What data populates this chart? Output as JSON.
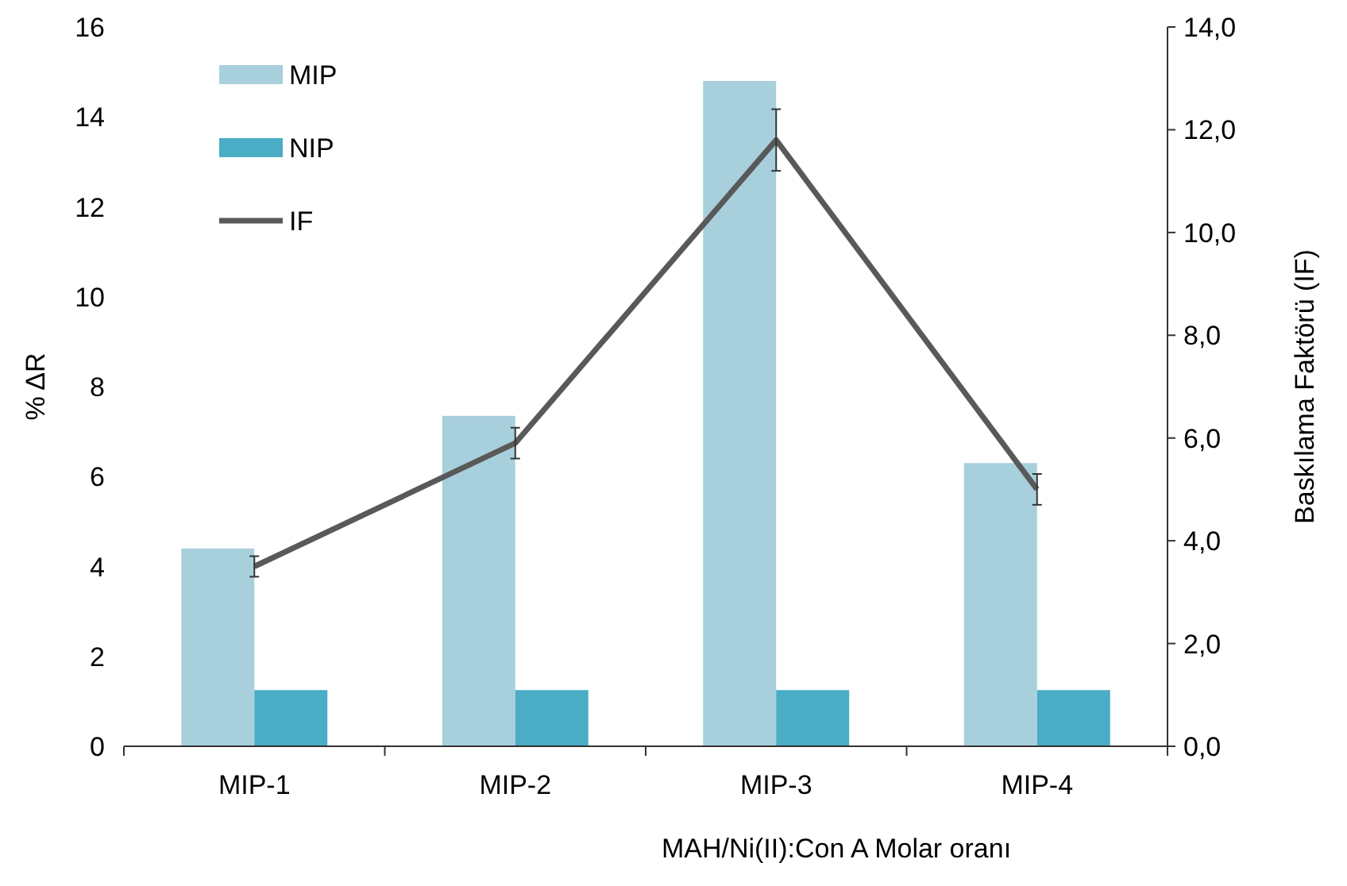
{
  "chart_data": {
    "type": "bar",
    "xlabel": "MAH/Ni(II):Con A Molar oranı",
    "ylabel": "% ΔR",
    "y2label": "Baskılama Faktörü (IF)",
    "categories": [
      "MIP-1",
      "MIP-2",
      "MIP-3",
      "MIP-4"
    ],
    "series": [
      {
        "name": "MIP",
        "color": "#a8d0dc",
        "values": [
          4.4,
          7.35,
          14.8,
          6.3
        ]
      },
      {
        "name": "NIP",
        "color": "#4bacc6",
        "values": [
          1.25,
          1.25,
          1.25,
          1.25
        ]
      },
      {
        "name": "IF",
        "type": "line",
        "axis": "y2",
        "color": "#595959",
        "values": [
          3.5,
          5.9,
          11.8,
          5.0
        ],
        "errors": [
          0.2,
          0.3,
          0.6,
          0.3
        ]
      }
    ],
    "ylim": [
      0,
      16
    ],
    "yticks": [
      0,
      2,
      4,
      6,
      8,
      10,
      12,
      14,
      16
    ],
    "y2lim": [
      0,
      14
    ],
    "y2ticks": [
      {
        "value": 0,
        "label": "0,0"
      },
      {
        "value": 2,
        "label": "2,0"
      },
      {
        "value": 4,
        "label": "4,0"
      },
      {
        "value": 6,
        "label": "6,0"
      },
      {
        "value": 8,
        "label": "8,0"
      },
      {
        "value": 10,
        "label": "10,0"
      },
      {
        "value": 12,
        "label": "12,0"
      },
      {
        "value": 14,
        "label": "14,0"
      }
    ],
    "legend": "top left",
    "marker": "none",
    "line_style": "solid"
  }
}
